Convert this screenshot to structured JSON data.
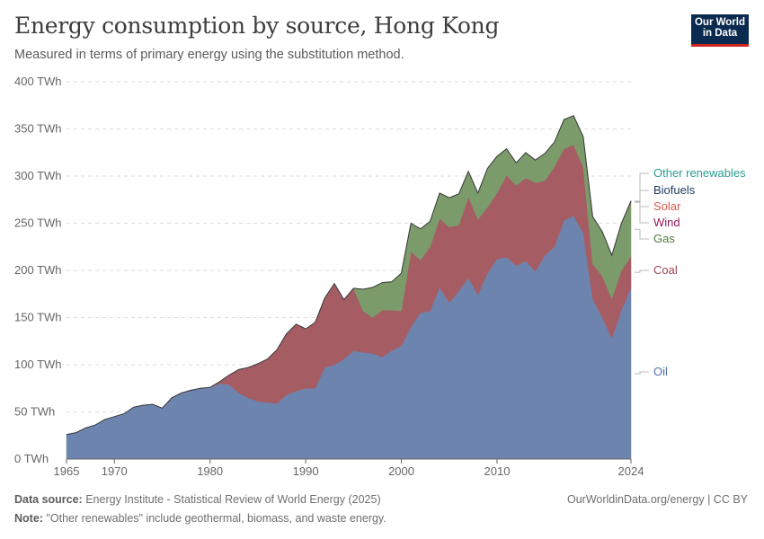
{
  "header": {
    "title": "Energy consumption by source, Hong Kong",
    "subtitle": "Measured in terms of primary energy using the substitution method.",
    "logo_line1": "Our World",
    "logo_line2": "in Data"
  },
  "footer": {
    "source_label": "Data source:",
    "source_text": "Energy Institute - Statistical Review of World Energy (2025)",
    "note_label": "Note:",
    "note_text": "\"Other renewables\" include geothermal, biomass, and waste energy.",
    "credit": "OurWorldinData.org/energy | CC BY"
  },
  "chart_data": {
    "type": "area",
    "stacked": true,
    "unit": "TWh",
    "ylim": [
      0,
      400
    ],
    "yticks": [
      0,
      50,
      100,
      150,
      200,
      250,
      300,
      350,
      400
    ],
    "ytick_labels": [
      "0 TWh",
      "50 TWh",
      "100 TWh",
      "150 TWh",
      "200 TWh",
      "250 TWh",
      "300 TWh",
      "350 TWh",
      "400 TWh"
    ],
    "xlim": [
      1965,
      2024
    ],
    "xticks": [
      1965,
      1970,
      1980,
      1990,
      2000,
      2010,
      2024
    ],
    "grid": "horizontal-dashed",
    "legend": "right",
    "x": [
      1965,
      1966,
      1967,
      1968,
      1969,
      1970,
      1971,
      1972,
      1973,
      1974,
      1975,
      1976,
      1977,
      1978,
      1979,
      1980,
      1981,
      1982,
      1983,
      1984,
      1985,
      1986,
      1987,
      1988,
      1989,
      1990,
      1991,
      1992,
      1993,
      1994,
      1995,
      1996,
      1997,
      1998,
      1999,
      2000,
      2001,
      2002,
      2003,
      2004,
      2005,
      2006,
      2007,
      2008,
      2009,
      2010,
      2011,
      2012,
      2013,
      2014,
      2015,
      2016,
      2017,
      2018,
      2019,
      2020,
      2021,
      2022,
      2023,
      2024
    ],
    "series": [
      {
        "name": "Oil",
        "color": "#6d84ae",
        "values": [
          26,
          28,
          33,
          36,
          42,
          45,
          48,
          55,
          57,
          58,
          54,
          65,
          70,
          73,
          75,
          76,
          80,
          79,
          70,
          65,
          61,
          60,
          59,
          68,
          72,
          75,
          75,
          97,
          100,
          106,
          115,
          113,
          112,
          108,
          115,
          120,
          140,
          155,
          157,
          182,
          166,
          178,
          192,
          174,
          197,
          212,
          214,
          205,
          210,
          199,
          216,
          225,
          253,
          258,
          240,
          170,
          150,
          128,
          158,
          181
        ]
      },
      {
        "name": "Coal",
        "color": "#a55d63",
        "values": [
          0,
          0,
          0,
          0,
          0,
          0,
          0,
          0,
          0,
          0,
          0,
          0,
          0,
          0,
          0,
          0,
          2,
          10,
          25,
          32,
          40,
          46,
          57,
          65,
          71,
          63,
          70,
          74,
          86,
          63,
          66,
          44,
          38,
          50,
          43,
          37,
          80,
          56,
          68,
          73,
          80,
          70,
          86,
          80,
          70,
          70,
          87,
          85,
          88,
          94,
          79,
          85,
          76,
          75,
          70,
          37,
          44,
          42,
          42,
          34
        ]
      },
      {
        "name": "Gas",
        "color": "#7b9b6a",
        "values": [
          0,
          0,
          0,
          0,
          0,
          0,
          0,
          0,
          0,
          0,
          0,
          0,
          0,
          0,
          0,
          0,
          0,
          0,
          0,
          0,
          0,
          0,
          0,
          0,
          0,
          0,
          0,
          0,
          0,
          0,
          0,
          23,
          32,
          29,
          30,
          40,
          30,
          33,
          27,
          27,
          31,
          33,
          27,
          28,
          41,
          39,
          28,
          24,
          27,
          24,
          29,
          26,
          31,
          31,
          32,
          50,
          47,
          46,
          50,
          57
        ]
      },
      {
        "name": "Wind",
        "color": "#96185a",
        "values": [
          0,
          0,
          0,
          0,
          0,
          0,
          0,
          0,
          0,
          0,
          0,
          0,
          0,
          0,
          0,
          0,
          0,
          0,
          0,
          0,
          0,
          0,
          0,
          0,
          0,
          0,
          0,
          0,
          0,
          0,
          0,
          0,
          0,
          0,
          0,
          0,
          0,
          0,
          0,
          0,
          0,
          0,
          0,
          0,
          0,
          0,
          0,
          0,
          0,
          0,
          0,
          0,
          0,
          0,
          0,
          0,
          0,
          0,
          0,
          0.2
        ]
      },
      {
        "name": "Solar",
        "color": "#e56e5a",
        "values": [
          0,
          0,
          0,
          0,
          0,
          0,
          0,
          0,
          0,
          0,
          0,
          0,
          0,
          0,
          0,
          0,
          0,
          0,
          0,
          0,
          0,
          0,
          0,
          0,
          0,
          0,
          0,
          0,
          0,
          0,
          0,
          0,
          0,
          0,
          0,
          0,
          0,
          0,
          0,
          0,
          0,
          0,
          0,
          0,
          0,
          0,
          0,
          0,
          0,
          0,
          0,
          0,
          0,
          0,
          0,
          0,
          0,
          0,
          0,
          0.5
        ]
      },
      {
        "name": "Biofuels",
        "color": "#1b3a5e",
        "values": [
          0,
          0,
          0,
          0,
          0,
          0,
          0,
          0,
          0,
          0,
          0,
          0,
          0,
          0,
          0,
          0,
          0,
          0,
          0,
          0,
          0,
          0,
          0,
          0,
          0,
          0,
          0,
          0,
          0,
          0,
          0,
          0,
          0,
          0,
          0,
          0,
          0,
          0,
          0,
          0,
          0,
          0,
          0,
          0,
          0,
          0,
          0,
          0,
          0,
          0,
          0,
          0,
          0,
          0,
          0,
          0,
          0,
          0,
          0,
          0.4
        ]
      },
      {
        "name": "Other renewables",
        "color": "#38aaba",
        "values": [
          0,
          0,
          0,
          0,
          0,
          0,
          0,
          0,
          0,
          0,
          0,
          0,
          0,
          0,
          0,
          0,
          0,
          0,
          0,
          0,
          0,
          0,
          0,
          0,
          0,
          0,
          0,
          0,
          0,
          0,
          0,
          0,
          0,
          0,
          0,
          0,
          0,
          0,
          0,
          0,
          0,
          0,
          0,
          0,
          0,
          0,
          0,
          0,
          0,
          0,
          0,
          0,
          0,
          0,
          0,
          0,
          0,
          0,
          0,
          0.6
        ]
      }
    ],
    "legend_labels": [
      {
        "name": "Other renewables",
        "color": "#2a9d8f"
      },
      {
        "name": "Biofuels",
        "color": "#1b3a5e"
      },
      {
        "name": "Solar",
        "color": "#e0594b"
      },
      {
        "name": "Wind",
        "color": "#96185a"
      },
      {
        "name": "Gas",
        "color": "#4c7a3a"
      },
      {
        "name": "Coal",
        "color": "#a2434f"
      },
      {
        "name": "Oil",
        "color": "#4f6fa7"
      }
    ]
  }
}
